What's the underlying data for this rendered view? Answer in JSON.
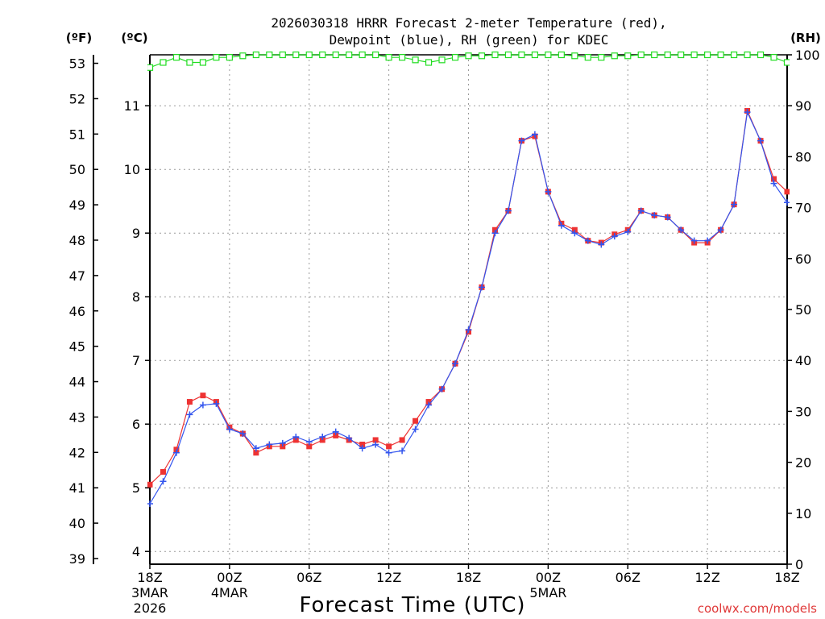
{
  "chart_data": {
    "type": "line",
    "title_line1": "2026030318 HRRR Forecast 2-meter Temperature (red),",
    "title_line2": "Dewpoint (blue), RH (green) for KDEC",
    "xlabel": "Forecast Time (UTC)",
    "credit": "coolwx.com/models",
    "unit_left_f": "(ºF)",
    "unit_left_c": "(ºC)",
    "unit_right": "(RH)",
    "x_ticks": [
      {
        "hour": 0,
        "label": "18Z",
        "sub1": "3MAR",
        "sub2": "2026"
      },
      {
        "hour": 6,
        "label": "00Z",
        "sub1": "4MAR",
        "sub2": ""
      },
      {
        "hour": 12,
        "label": "06Z",
        "sub1": "",
        "sub2": ""
      },
      {
        "hour": 18,
        "label": "12Z",
        "sub1": "",
        "sub2": ""
      },
      {
        "hour": 24,
        "label": "18Z",
        "sub1": "",
        "sub2": ""
      },
      {
        "hour": 30,
        "label": "00Z",
        "sub1": "5MAR",
        "sub2": ""
      },
      {
        "hour": 36,
        "label": "06Z",
        "sub1": "",
        "sub2": ""
      },
      {
        "hour": 42,
        "label": "12Z",
        "sub1": "",
        "sub2": ""
      },
      {
        "hour": 48,
        "label": "18Z",
        "sub1": "",
        "sub2": ""
      }
    ],
    "x_range": [
      0,
      48
    ],
    "c_ticks": [
      "4",
      "5",
      "6",
      "7",
      "8",
      "9",
      "10",
      "11"
    ],
    "c_range": [
      3.8,
      11.8
    ],
    "f_ticks": [
      "39",
      "40",
      "41",
      "42",
      "43",
      "44",
      "45",
      "46",
      "47",
      "48",
      "49",
      "50",
      "51",
      "52",
      "53"
    ],
    "rh_ticks": [
      "0",
      "10",
      "20",
      "30",
      "40",
      "50",
      "60",
      "70",
      "80",
      "90",
      "100"
    ],
    "rh_range": [
      0,
      100
    ],
    "grid": true,
    "series": [
      {
        "name": "Temperature",
        "units": "C",
        "color": "#ee3333",
        "marker": "square",
        "values": [
          5.05,
          5.25,
          5.6,
          6.35,
          6.45,
          6.35,
          5.95,
          5.85,
          5.55,
          5.65,
          5.65,
          5.75,
          5.65,
          5.75,
          5.82,
          5.75,
          5.68,
          5.75,
          5.65,
          5.75,
          6.05,
          6.35,
          6.55,
          6.95,
          7.45,
          8.15,
          9.05,
          9.35,
          10.45,
          10.52,
          9.65,
          9.15,
          9.05,
          8.88,
          8.85,
          8.98,
          9.05,
          9.35,
          9.28,
          9.25,
          9.05,
          8.85,
          8.85,
          9.05,
          9.45,
          10.92,
          10.45,
          9.85,
          9.65
        ]
      },
      {
        "name": "Dewpoint",
        "units": "C",
        "color": "#3355ee",
        "marker": "plus",
        "values": [
          4.75,
          5.1,
          5.55,
          6.15,
          6.3,
          6.32,
          5.92,
          5.85,
          5.62,
          5.68,
          5.7,
          5.8,
          5.72,
          5.8,
          5.88,
          5.78,
          5.62,
          5.68,
          5.55,
          5.58,
          5.92,
          6.3,
          6.55,
          6.95,
          7.48,
          8.15,
          9.0,
          9.35,
          10.45,
          10.55,
          9.65,
          9.12,
          9.0,
          8.88,
          8.82,
          8.95,
          9.02,
          9.35,
          9.28,
          9.25,
          9.05,
          8.88,
          8.88,
          9.05,
          9.45,
          10.9,
          10.45,
          9.78,
          9.48
        ]
      },
      {
        "name": "RH",
        "units": "%",
        "color": "#22dd22",
        "marker": "open-square",
        "values": [
          97.5,
          98.5,
          99.5,
          98.5,
          98.5,
          99.5,
          99.5,
          99.8,
          100,
          100,
          100,
          100,
          100,
          100,
          100,
          100,
          100,
          100,
          99.5,
          99.5,
          99,
          98.5,
          99,
          99.5,
          99.8,
          99.8,
          100,
          100,
          100,
          100,
          100,
          100,
          99.8,
          99.5,
          99.5,
          99.8,
          99.8,
          100,
          100,
          100,
          100,
          100,
          100,
          100,
          100,
          100,
          100,
          99.5,
          98.5
        ]
      }
    ]
  }
}
